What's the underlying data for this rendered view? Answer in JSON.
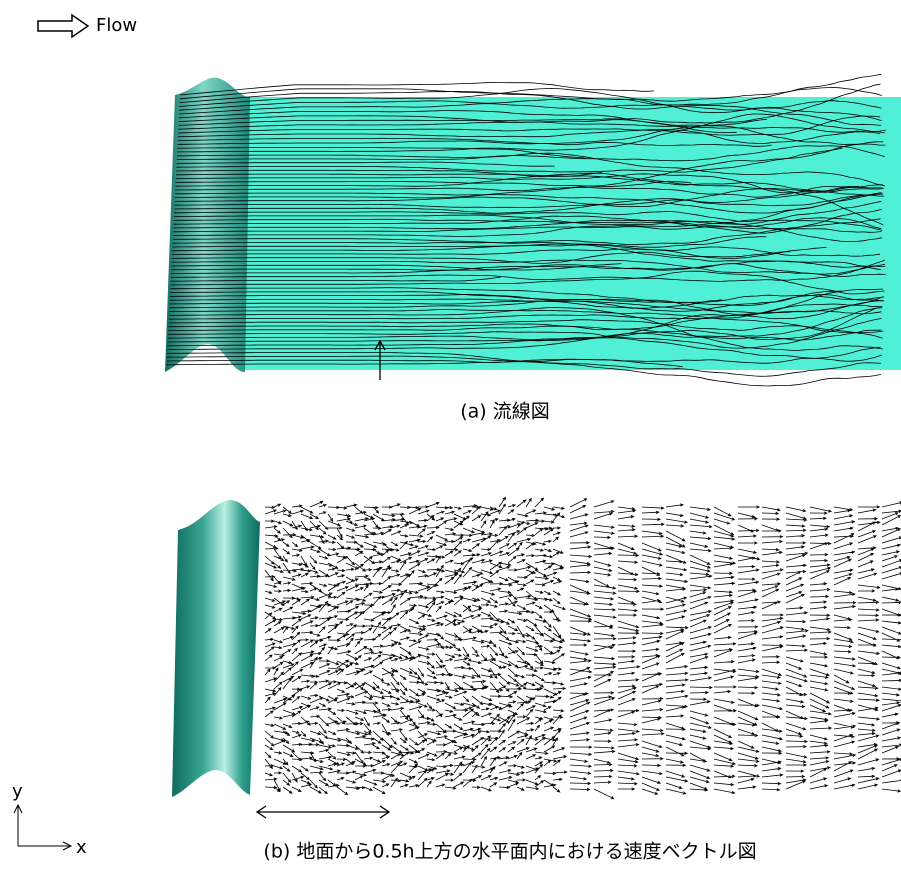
{
  "flow_label": "Flow",
  "panel_a": {
    "caption": "(a) 流線図"
  },
  "panel_b": {
    "caption": "(b) 地面から0.5h上方の水平面内における速度ベクトル図"
  },
  "axes": {
    "y": "y",
    "x": "x"
  }
}
